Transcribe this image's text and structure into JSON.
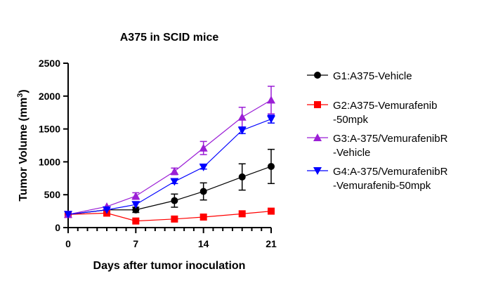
{
  "chart_data": {
    "type": "line",
    "title": "A375 in SCID mice",
    "xlabel": "Days after tumor inoculation",
    "ylabel": "Tumor Volume (mm",
    "ylabel_sup": "3",
    "ylabel_end": ")",
    "xlim": [
      0,
      21
    ],
    "ylim": [
      0,
      2500
    ],
    "xticks": [
      0,
      7,
      14,
      21
    ],
    "yticks": [
      0,
      500,
      1000,
      1500,
      2000,
      2500
    ],
    "x": [
      0,
      4,
      7,
      11,
      14,
      18,
      21
    ],
    "legend_position": "right",
    "series": [
      {
        "name": "G1:A375-Vehicle",
        "legend_lines": [
          "G1:A375-Vehicle"
        ],
        "color": "#000000",
        "marker": "circle",
        "values": [
          200,
          270,
          270,
          410,
          550,
          770,
          930
        ],
        "errors": [
          10,
          20,
          40,
          100,
          130,
          200,
          260
        ]
      },
      {
        "name": "G2:A375-Vemurafenib-50mpk",
        "legend_lines": [
          "G2:A375-Vemurafenib",
          "-50mpk"
        ],
        "color": "#ff0000",
        "marker": "square",
        "values": [
          200,
          220,
          100,
          130,
          160,
          210,
          250
        ],
        "errors": [
          10,
          15,
          15,
          15,
          15,
          20,
          25
        ]
      },
      {
        "name": "G3:A-375/VemurafenibR-Vehicle",
        "legend_lines": [
          "G3:A-375/VemurafenibR",
          "-Vehicle"
        ],
        "color": "#9b1fd6",
        "marker": "triangle-up",
        "values": [
          200,
          320,
          480,
          855,
          1210,
          1680,
          1940
        ],
        "errors": [
          10,
          20,
          50,
          50,
          100,
          150,
          210
        ]
      },
      {
        "name": "G4:A-375/VemurafenibR-Vemurafenib-50mpk",
        "legend_lines": [
          "G4:A-375/VemurafenibR",
          "-Vemurafenib-50mpk"
        ],
        "color": "#0000ff",
        "marker": "triangle-down",
        "values": [
          200,
          270,
          350,
          700,
          920,
          1480,
          1650
        ],
        "errors": [
          10,
          15,
          20,
          30,
          30,
          50,
          60
        ]
      }
    ]
  }
}
